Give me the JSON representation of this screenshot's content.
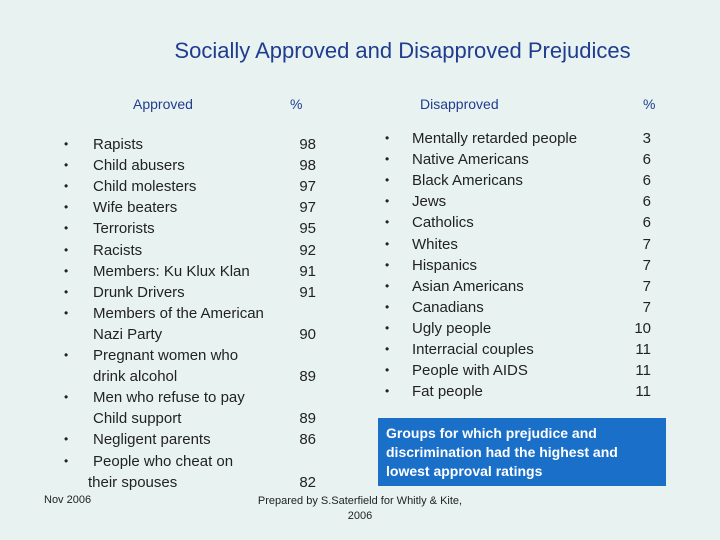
{
  "title": "Socially Approved and Disapproved Prejudices",
  "headers": {
    "approved": "Approved",
    "approved_pct": "%",
    "disapproved": "Disapproved",
    "disapproved_pct": "%"
  },
  "approved": [
    {
      "lines": [
        "Rapists"
      ],
      "pct": "98"
    },
    {
      "lines": [
        "Child abusers"
      ],
      "pct": "98"
    },
    {
      "lines": [
        "Child molesters"
      ],
      "pct": "97"
    },
    {
      "lines": [
        "Wife beaters"
      ],
      "pct": "97"
    },
    {
      "lines": [
        "Terrorists"
      ],
      "pct": "95"
    },
    {
      "lines": [
        "Racists"
      ],
      "pct": "92"
    },
    {
      "lines": [
        "Members: Ku Klux Klan"
      ],
      "pct": "91"
    },
    {
      "lines": [
        "Drunk Drivers"
      ],
      "pct": "91"
    },
    {
      "lines": [
        "Members of the American",
        "Nazi Party"
      ],
      "pct": "90"
    },
    {
      "lines": [
        "Pregnant women who",
        "drink alcohol"
      ],
      "pct": "89"
    },
    {
      "lines": [
        "Men who refuse to pay",
        "Child support"
      ],
      "pct": "89"
    },
    {
      "lines": [
        "Negligent parents"
      ],
      "pct": "86"
    },
    {
      "lines": [
        "People who cheat on",
        "their spouses"
      ],
      "pct": "82"
    }
  ],
  "disapproved": [
    {
      "label": "Mentally retarded people",
      "pct": "3"
    },
    {
      "label": "Native Americans",
      "pct": "6"
    },
    {
      "label": "Black Americans",
      "pct": "6"
    },
    {
      "label": "Jews",
      "pct": "6"
    },
    {
      "label": "Catholics",
      "pct": "6"
    },
    {
      "label": "Whites",
      "pct": "7"
    },
    {
      "label": "Hispanics",
      "pct": "7"
    },
    {
      "label": "Asian Americans",
      "pct": "7"
    },
    {
      "label": "Canadians",
      "pct": "7"
    },
    {
      "label": "Ugly people",
      "pct": "10"
    },
    {
      "label": "Interracial couples",
      "pct": "11"
    },
    {
      "label": "People with AIDS",
      "pct": "11"
    },
    {
      "label": "Fat people",
      "pct": "11"
    }
  ],
  "callout": "Groups for which prejudice and discrimination had the highest and lowest approval ratings",
  "footer_left": "Nov 2006",
  "footer_mid": "Prepared by S.Saterfield for Whitly & Kite, 2006"
}
